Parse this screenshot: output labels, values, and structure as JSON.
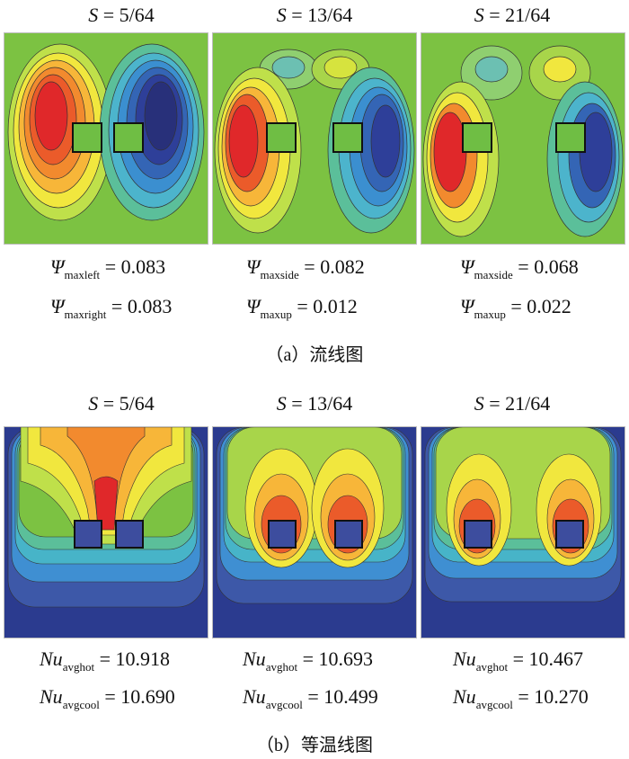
{
  "streamline": {
    "titles": [
      {
        "sym": "S",
        "eq": " = 5/64"
      },
      {
        "sym": "S",
        "eq": " = 13/64"
      },
      {
        "sym": "S",
        "eq": " = 21/64"
      }
    ],
    "values": [
      [
        {
          "sym": "Ψ",
          "sub": "maxleft",
          "eq": " = 0.083"
        },
        {
          "sym": "Ψ",
          "sub": "maxright",
          "eq": " = 0.083"
        }
      ],
      [
        {
          "sym": "Ψ",
          "sub": "maxside",
          "eq": " = 0.082"
        },
        {
          "sym": "Ψ",
          "sub": "maxup",
          "eq": " = 0.012"
        }
      ],
      [
        {
          "sym": "Ψ",
          "sub": "maxside",
          "eq": " = 0.068"
        },
        {
          "sym": "Ψ",
          "sub": "maxup",
          "eq": " = 0.022"
        }
      ]
    ],
    "caption": "（a）流线图"
  },
  "isotherm": {
    "titles": [
      {
        "sym": "S",
        "eq": " = 5/64"
      },
      {
        "sym": "S",
        "eq": " = 13/64"
      },
      {
        "sym": "S",
        "eq": " = 21/64"
      }
    ],
    "values": [
      [
        {
          "sym": "Nu",
          "sub": "avghot",
          "eq": " = 10.918"
        },
        {
          "sym": "Nu",
          "sub": "avgcool",
          "eq": " = 10.690"
        }
      ],
      [
        {
          "sym": "Nu",
          "sub": "avghot",
          "eq": " = 10.693"
        },
        {
          "sym": "Nu",
          "sub": "avgcool",
          "eq": " = 10.499"
        }
      ],
      [
        {
          "sym": "Nu",
          "sub": "avghot",
          "eq": " = 10.467"
        },
        {
          "sym": "Nu",
          "sub": "avgcool",
          "eq": " = 10.270"
        }
      ]
    ],
    "caption": "（b）等温线图"
  },
  "colors": {
    "background_green": "#7cc242",
    "hot_red": "#e0282a",
    "cold_blue": "#2e3f99",
    "block_green": "#6fbe44",
    "block_blue": "#3d4d9e"
  }
}
